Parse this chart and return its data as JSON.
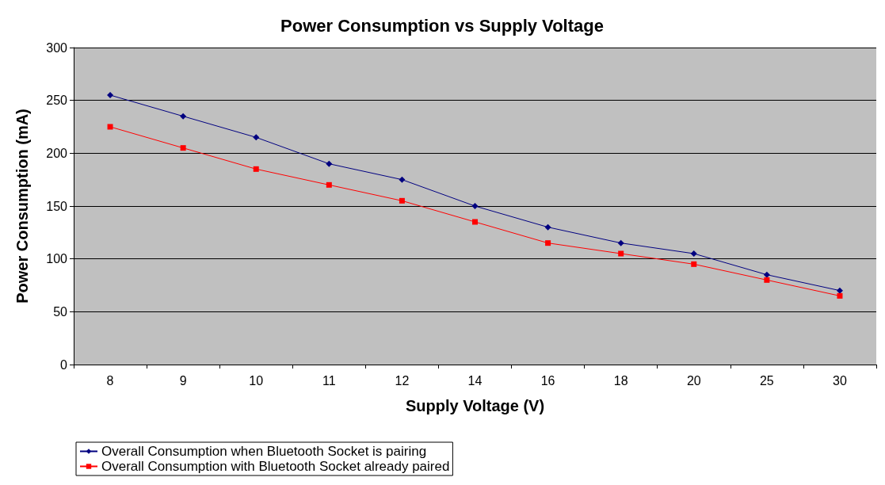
{
  "chart_data": {
    "type": "line",
    "title": "Power Consumption vs Supply Voltage",
    "xlabel": "Supply Voltage (V)",
    "ylabel": "Power Consumption (mA)",
    "categories": [
      "8",
      "9",
      "10",
      "11",
      "12",
      "14",
      "16",
      "18",
      "20",
      "25",
      "30"
    ],
    "series": [
      {
        "name": "Overall Consumption when Bluetooth Socket is pairing",
        "color": "#000080",
        "marker": "diamond",
        "values": [
          255,
          235,
          215,
          190,
          175,
          150,
          130,
          115,
          105,
          85,
          70
        ]
      },
      {
        "name": "Overall Consumption with Bluetooth Socket already paired",
        "color": "#ff0000",
        "marker": "square",
        "values": [
          225,
          205,
          185,
          170,
          155,
          135,
          115,
          105,
          95,
          80,
          65
        ]
      }
    ],
    "ylim": [
      0,
      300
    ],
    "yticks": [
      0,
      50,
      100,
      150,
      200,
      250,
      300
    ],
    "grid": "y",
    "legend": "bottom left",
    "line_style": "solid"
  }
}
